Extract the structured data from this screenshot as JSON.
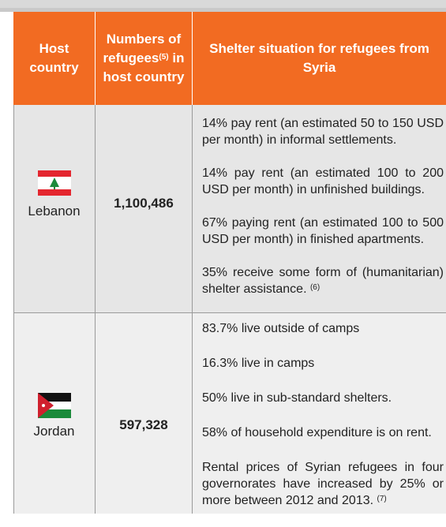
{
  "table": {
    "header": {
      "host": "Host country",
      "numbers": {
        "text": "Numbers of refugees",
        "note": "(5)",
        "rest": "in host country"
      },
      "shelter": "Shelter situation for refugees from Syria"
    },
    "rows": [
      {
        "country": "Lebanon",
        "refugees": "1,100,486",
        "items": [
          {
            "text": "14% pay rent (an estimated 50 to 150 USD per month) in informal settlements."
          },
          {
            "text": "14% pay rent (an estimated 100 to 200 USD per month) in unfinished buildings."
          },
          {
            "text": "67% paying rent (an estimated 100 to 500 USD per month) in finished apartments."
          },
          {
            "text": "35% receive some form of (humanitarian) shelter assistance.",
            "note": "(6)"
          }
        ]
      },
      {
        "country": "Jordan",
        "refugees": "597,328",
        "items": [
          {
            "text": "83.7% live outside of camps"
          },
          {
            "text": "16.3% live in camps"
          },
          {
            "text": "50% live in sub-standard shelters."
          },
          {
            "text": "58% of household expenditure is on rent."
          },
          {
            "text": "Rental prices of Syrian refugees in four governorates have increased by 25% or more between 2012 and 2013.",
            "note": "(7)"
          }
        ]
      }
    ]
  }
}
